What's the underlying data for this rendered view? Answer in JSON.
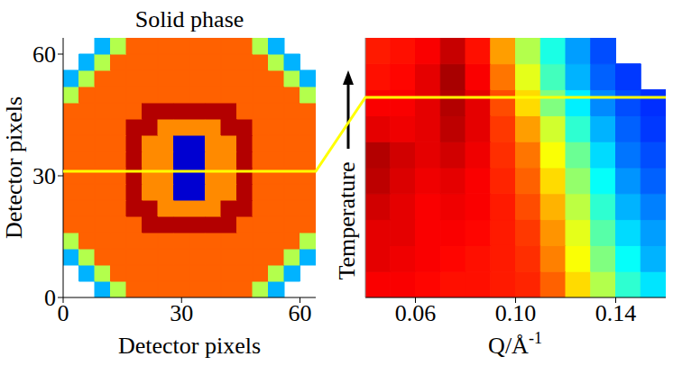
{
  "chart_data": [
    {
      "type": "heatmap",
      "title": "Solid phase",
      "xlabel": "Detector pixels",
      "ylabel": "Detector pixels",
      "xlim": [
        0,
        64
      ],
      "ylim": [
        0,
        64
      ],
      "xticks": [
        0,
        30,
        60
      ],
      "yticks": [
        0,
        30,
        60
      ],
      "zlim": [
        0,
        1
      ],
      "cells": [
        [
          null,
          null,
          0.3,
          0.55,
          0.78,
          0.78,
          0.78,
          0.78,
          0.78,
          0.78,
          0.78,
          0.78,
          0.55,
          0.3,
          null,
          null
        ],
        [
          null,
          0.3,
          0.55,
          0.78,
          0.78,
          0.78,
          0.78,
          0.78,
          0.78,
          0.78,
          0.78,
          0.78,
          0.78,
          0.55,
          0.3,
          null
        ],
        [
          0.3,
          0.55,
          0.78,
          0.78,
          0.78,
          0.78,
          0.78,
          0.78,
          0.78,
          0.78,
          0.78,
          0.78,
          0.78,
          0.78,
          0.55,
          0.3
        ],
        [
          0.55,
          0.78,
          0.78,
          0.78,
          0.78,
          0.78,
          0.78,
          0.78,
          0.78,
          0.78,
          0.78,
          0.78,
          0.78,
          0.78,
          0.78,
          0.55
        ],
        [
          0.78,
          0.78,
          0.78,
          0.78,
          0.78,
          0.95,
          0.95,
          0.95,
          0.95,
          0.95,
          0.95,
          0.78,
          0.78,
          0.78,
          0.78,
          0.78
        ],
        [
          0.78,
          0.78,
          0.78,
          0.78,
          0.95,
          0.95,
          0.74,
          0.74,
          0.74,
          0.74,
          0.95,
          0.95,
          0.78,
          0.78,
          0.78,
          0.78
        ],
        [
          0.78,
          0.78,
          0.78,
          0.78,
          0.95,
          0.74,
          0.74,
          0.08,
          0.08,
          0.74,
          0.74,
          0.95,
          0.78,
          0.78,
          0.78,
          0.78
        ],
        [
          0.78,
          0.78,
          0.78,
          0.78,
          0.95,
          0.74,
          0.74,
          0.08,
          0.08,
          0.74,
          0.74,
          0.95,
          0.78,
          0.78,
          0.78,
          0.78
        ],
        [
          0.78,
          0.78,
          0.78,
          0.78,
          0.95,
          0.74,
          0.74,
          0.08,
          0.08,
          0.74,
          0.74,
          0.95,
          0.78,
          0.78,
          0.78,
          0.78
        ],
        [
          0.78,
          0.78,
          0.78,
          0.78,
          0.95,
          0.74,
          0.74,
          0.08,
          0.08,
          0.74,
          0.74,
          0.95,
          0.78,
          0.78,
          0.78,
          0.78
        ],
        [
          0.78,
          0.78,
          0.78,
          0.78,
          0.95,
          0.95,
          0.74,
          0.74,
          0.74,
          0.74,
          0.95,
          0.95,
          0.78,
          0.78,
          0.78,
          0.78
        ],
        [
          0.78,
          0.78,
          0.78,
          0.78,
          0.78,
          0.95,
          0.95,
          0.95,
          0.95,
          0.95,
          0.95,
          0.78,
          0.78,
          0.78,
          0.78,
          0.78
        ],
        [
          0.55,
          0.78,
          0.78,
          0.78,
          0.78,
          0.78,
          0.78,
          0.78,
          0.78,
          0.78,
          0.78,
          0.78,
          0.78,
          0.78,
          0.78,
          0.55
        ],
        [
          0.3,
          0.55,
          0.78,
          0.78,
          0.78,
          0.78,
          0.78,
          0.78,
          0.78,
          0.78,
          0.78,
          0.78,
          0.78,
          0.78,
          0.55,
          0.3
        ],
        [
          null,
          0.3,
          0.55,
          0.78,
          0.78,
          0.78,
          0.78,
          0.78,
          0.78,
          0.78,
          0.78,
          0.78,
          0.78,
          0.55,
          0.3,
          null
        ],
        [
          null,
          null,
          0.3,
          0.55,
          0.78,
          0.78,
          0.78,
          0.78,
          0.78,
          0.78,
          0.78,
          0.78,
          0.55,
          0.3,
          null,
          null
        ]
      ]
    },
    {
      "type": "heatmap",
      "xlabel": "Q/Å-1",
      "ylabel": "Temperature",
      "xlim": [
        0.04,
        0.16
      ],
      "xticks": [
        0.06,
        {
          "value": 0.1,
          "label": "0.10"
        },
        0.14
      ],
      "zlim": [
        0,
        1
      ],
      "tick_labels": "x",
      "cells": [
        [
          0.88,
          0.88,
          0.87,
          0.86,
          0.86,
          0.85,
          0.84,
          0.78,
          0.66,
          0.55,
          0.42,
          0.35
        ],
        [
          0.9,
          0.89,
          0.88,
          0.87,
          0.86,
          0.85,
          0.83,
          0.75,
          0.62,
          0.5,
          0.38,
          0.3
        ],
        [
          0.9,
          0.9,
          0.88,
          0.88,
          0.87,
          0.85,
          0.82,
          0.73,
          0.6,
          0.46,
          0.34,
          0.28
        ],
        [
          0.92,
          0.9,
          0.88,
          0.89,
          0.88,
          0.85,
          0.8,
          0.7,
          0.56,
          0.42,
          0.3,
          0.25
        ],
        [
          0.94,
          0.91,
          0.89,
          0.9,
          0.88,
          0.84,
          0.78,
          0.66,
          0.52,
          0.38,
          0.27,
          0.22
        ],
        [
          0.95,
          0.92,
          0.9,
          0.92,
          0.89,
          0.83,
          0.76,
          0.62,
          0.48,
          0.34,
          0.24,
          0.2
        ],
        [
          0.9,
          0.89,
          0.9,
          0.94,
          0.9,
          0.82,
          0.72,
          0.58,
          0.42,
          0.3,
          0.22,
          0.18
        ],
        [
          0.88,
          0.88,
          0.9,
          0.95,
          0.9,
          0.8,
          0.66,
          0.5,
          0.36,
          0.26,
          0.2,
          0.17
        ],
        [
          0.86,
          0.87,
          0.9,
          0.96,
          0.88,
          0.76,
          0.6,
          0.44,
          0.3,
          0.22,
          0.18,
          null
        ],
        [
          0.85,
          0.86,
          0.88,
          0.93,
          0.86,
          0.72,
          0.55,
          0.4,
          0.28,
          0.2,
          null,
          null
        ]
      ]
    }
  ]
}
